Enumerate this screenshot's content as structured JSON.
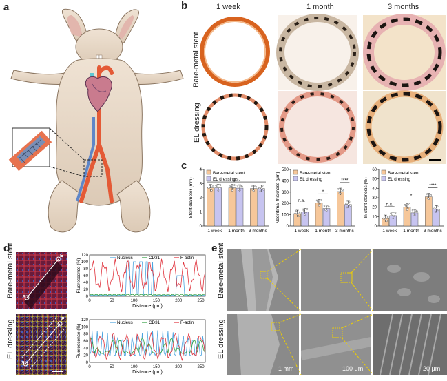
{
  "panels": {
    "a": "a",
    "b": "b",
    "c": "c",
    "d": "d",
    "e": "e"
  },
  "panel_b": {
    "columns": [
      "1 week",
      "1 month",
      "3 months"
    ],
    "rows": [
      "Bare-metal stent",
      "EL dressing"
    ]
  },
  "panel_d": {
    "rows": [
      "Bare-metal stent",
      "EL dressing"
    ],
    "line_start": "S",
    "line_end": "E",
    "legend": [
      "Nucleus",
      "CD31",
      "F-actin"
    ],
    "colors": {
      "Nucleus": "#4aa3df",
      "CD31": "#2e9e3e",
      "F-actin": "#e0313b"
    }
  },
  "panel_e": {
    "rows": [
      "Bare-metal stent",
      "EL dressing"
    ],
    "scales": [
      "1 mm",
      "100 μm",
      "20 μm"
    ]
  },
  "colors": {
    "bare": "#f6c79a",
    "el": "#c7c4f0"
  },
  "chart_data": [
    {
      "type": "bar",
      "title": "",
      "ylabel": "Stent diameter (mm)",
      "ylim": [
        0,
        4
      ],
      "yticks": [
        "0",
        "1",
        "2",
        "3",
        "4"
      ],
      "categories": [
        "1 week",
        "1 month",
        "3 months"
      ],
      "series": [
        {
          "name": "Bare-metal stent",
          "values": [
            2.7,
            2.7,
            2.65
          ]
        },
        {
          "name": "EL dressing",
          "values": [
            2.7,
            2.68,
            2.65
          ]
        }
      ],
      "significance": [
        "n.s."
      ],
      "legend_position": "top-left"
    },
    {
      "type": "bar",
      "title": "",
      "ylabel": "Neointimal thickness (μm)",
      "ylim": [
        0,
        500
      ],
      "yticks": [
        "0",
        "100",
        "200",
        "300",
        "400",
        "500"
      ],
      "categories": [
        "1 week",
        "1 month",
        "3 months"
      ],
      "series": [
        {
          "name": "Bare-metal stent",
          "values": [
            110,
            205,
            305
          ]
        },
        {
          "name": "EL dressing",
          "values": [
            125,
            155,
            190
          ]
        }
      ],
      "significance": [
        "n.s.",
        "*",
        "****"
      ],
      "legend_position": "top-left"
    },
    {
      "type": "bar",
      "title": "",
      "ylabel": "In-stent stenosis (%)",
      "ylim": [
        0,
        60
      ],
      "yticks": [
        "0",
        "10",
        "20",
        "30",
        "40",
        "50",
        "60"
      ],
      "categories": [
        "1 week",
        "1 month",
        "3 months"
      ],
      "series": [
        {
          "name": "Bare-metal stent",
          "values": [
            8,
            20,
            31
          ]
        },
        {
          "name": "EL dressing",
          "values": [
            11,
            14,
            18
          ]
        }
      ],
      "significance": [
        "n.s.",
        "*",
        "****"
      ],
      "legend_position": "top-left"
    },
    {
      "type": "line",
      "title": "",
      "xlabel": "Distance (μm)",
      "ylabel": "Fluorescence (%)",
      "xlim": [
        0,
        260
      ],
      "ylim": [
        0,
        120
      ],
      "xticks": [
        "0",
        "50",
        "100",
        "150",
        "200",
        "250"
      ],
      "yticks": [
        "0",
        "20",
        "40",
        "60",
        "80",
        "100",
        "120"
      ],
      "series": [
        {
          "name": "Nucleus",
          "pattern": "bare-nuc"
        },
        {
          "name": "CD31",
          "pattern": "bare-cd"
        },
        {
          "name": "F-actin",
          "pattern": "bare-fa"
        }
      ]
    },
    {
      "type": "line",
      "title": "",
      "xlabel": "Distance (μm)",
      "ylabel": "Fluorescence (%)",
      "xlim": [
        0,
        260
      ],
      "ylim": [
        0,
        120
      ],
      "xticks": [
        "0",
        "50",
        "100",
        "150",
        "200",
        "250"
      ],
      "yticks": [
        "0",
        "20",
        "40",
        "60",
        "80",
        "100",
        "120"
      ],
      "series": [
        {
          "name": "Nucleus",
          "pattern": "el-nuc"
        },
        {
          "name": "CD31",
          "pattern": "el-cd"
        },
        {
          "name": "F-actin",
          "pattern": "el-fa"
        }
      ]
    }
  ]
}
